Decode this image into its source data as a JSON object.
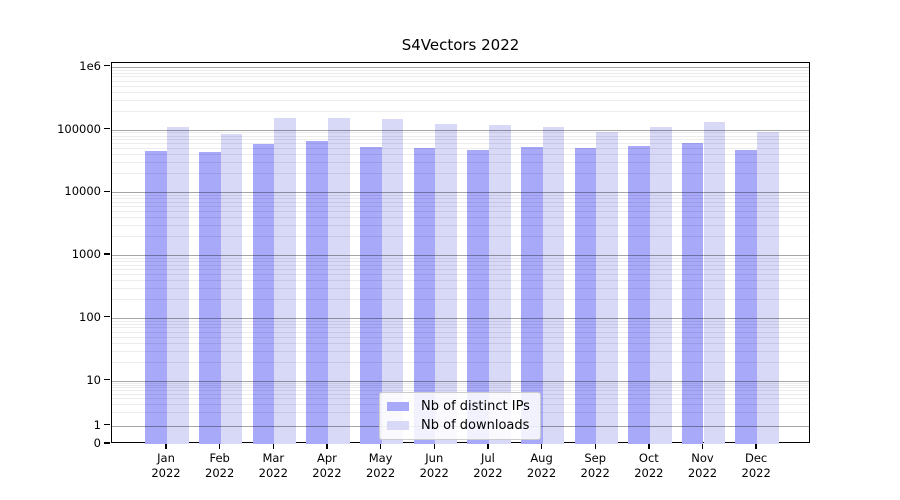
{
  "figure": {
    "title": "S4Vectors 2022",
    "background_color": "#ffffff"
  },
  "chart_data": {
    "type": "bar",
    "title": "S4Vectors 2022",
    "xlabel": "",
    "ylabel": "",
    "yscale": "symlog",
    "ylim": [
      0,
      1000000
    ],
    "grid": true,
    "legend_position": "lower center",
    "categories": [
      "Jan",
      "Feb",
      "Mar",
      "Apr",
      "May",
      "Jun",
      "Jul",
      "Aug",
      "Sep",
      "Oct",
      "Nov",
      "Dec"
    ],
    "category_year": "2022",
    "series": [
      {
        "name": "Nb of distinct IPs",
        "color": "#a9a9f9",
        "values": [
          46000,
          44000,
          59000,
          65000,
          53000,
          51000,
          48000,
          52000,
          50000,
          55000,
          60000,
          47000
        ]
      },
      {
        "name": "Nb of downloads",
        "color": "#d8d8f7",
        "values": [
          110000,
          85000,
          150000,
          153000,
          146000,
          122000,
          116000,
          110000,
          91000,
          110000,
          131000,
          91000
        ]
      }
    ],
    "y_ticks": [
      {
        "label": "1e6",
        "value": 1000000
      },
      {
        "label": "100000",
        "value": 100000
      },
      {
        "label": "10000",
        "value": 10000
      },
      {
        "label": "1000",
        "value": 1000
      },
      {
        "label": "100",
        "value": 100
      },
      {
        "label": "10",
        "value": 10
      },
      {
        "label": "1",
        "value": 1
      },
      {
        "label": "0",
        "value": 0
      }
    ]
  },
  "legend": {
    "items": [
      {
        "label": "Nb of distinct IPs",
        "color": "#a9a9f9"
      },
      {
        "label": "Nb of downloads",
        "color": "#d8d8f7"
      }
    ]
  }
}
